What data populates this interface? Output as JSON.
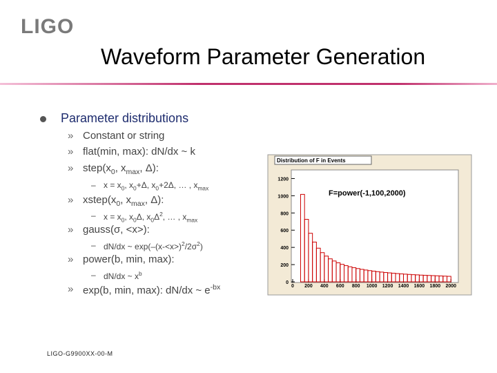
{
  "logo": "LIGO",
  "header": {
    "title": "Waveform Parameter Generation"
  },
  "bullet": "Parameter distributions",
  "items": [
    {
      "level": 2,
      "parts": [
        {
          "text": "Constant or string"
        }
      ]
    },
    {
      "level": 2,
      "parts": [
        {
          "text": "flat(min, max): dN/dx ~ k"
        }
      ]
    },
    {
      "level": 2,
      "parts": [
        {
          "text": "step(x"
        },
        {
          "text": "0",
          "style": "sub"
        },
        {
          "text": ", x"
        },
        {
          "text": "max",
          "style": "sub"
        },
        {
          "text": ", Δ):"
        }
      ]
    },
    {
      "level": 3,
      "parts": [
        {
          "text": "x = x"
        },
        {
          "text": "0",
          "style": "sub"
        },
        {
          "text": ", x"
        },
        {
          "text": "0",
          "style": "sub"
        },
        {
          "text": "+Δ, x"
        },
        {
          "text": "0",
          "style": "sub"
        },
        {
          "text": "+2Δ, … , x"
        },
        {
          "text": "max",
          "style": "sub"
        }
      ]
    },
    {
      "level": 2,
      "parts": [
        {
          "text": "xstep(x"
        },
        {
          "text": "0",
          "style": "sub"
        },
        {
          "text": ", x"
        },
        {
          "text": "max",
          "style": "sub"
        },
        {
          "text": ", Δ):"
        }
      ]
    },
    {
      "level": 3,
      "parts": [
        {
          "text": "x = x"
        },
        {
          "text": "0",
          "style": "sub"
        },
        {
          "text": ", x"
        },
        {
          "text": "0",
          "style": "sub"
        },
        {
          "text": "Δ, x"
        },
        {
          "text": "0",
          "style": "sub"
        },
        {
          "text": "Δ"
        },
        {
          "text": "2",
          "style": "sup"
        },
        {
          "text": ", … , x"
        },
        {
          "text": "max",
          "style": "sub"
        }
      ]
    },
    {
      "level": 2,
      "parts": [
        {
          "text": "gauss(σ, <x>):"
        }
      ]
    },
    {
      "level": 3,
      "parts": [
        {
          "text": "dN/dx ~ exp(–(x-<x>)"
        },
        {
          "text": "2",
          "style": "sup"
        },
        {
          "text": "/2σ"
        },
        {
          "text": "2",
          "style": "sup"
        },
        {
          "text": ")"
        }
      ]
    },
    {
      "level": 2,
      "parts": [
        {
          "text": "power(b, min, max):"
        }
      ]
    },
    {
      "level": 3,
      "parts": [
        {
          "text": "dN/dx ~ x"
        },
        {
          "text": "b",
          "style": "sup"
        }
      ]
    },
    {
      "level": 2,
      "parts": [
        {
          "text": "exp(b, min, max): dN/dx ~ e"
        },
        {
          "text": "-bx",
          "style": "sup"
        }
      ]
    }
  ],
  "footer": "LIGO-G9900XX-00-M",
  "chart_data": {
    "type": "histogram",
    "title": "Distribution of F in Events",
    "annotation": "F=power(-1,100,2000)",
    "color": "#cc0000",
    "bins": [
      100,
      150,
      200,
      250,
      300,
      350,
      400,
      450,
      500,
      550,
      600,
      650,
      700,
      750,
      800,
      850,
      900,
      950,
      1000,
      1050,
      1100,
      1150,
      1200,
      1250,
      1300,
      1350,
      1400,
      1450,
      1500,
      1550,
      1600,
      1650,
      1700,
      1750,
      1800,
      1850,
      1900,
      1950,
      2000
    ],
    "values": [
      1016,
      726,
      564,
      462,
      391,
      339,
      299,
      267,
      242,
      221,
      203,
      188,
      175,
      164,
      154,
      145,
      137,
      130,
      124,
      118,
      113,
      108,
      104,
      100,
      96,
      92,
      89,
      86,
      83,
      81,
      78,
      76,
      74,
      72,
      70,
      68,
      66,
      64
    ],
    "xlim": [
      0,
      2050
    ],
    "xticks": [
      0,
      200,
      400,
      600,
      800,
      1000,
      1200,
      1400,
      1600,
      1800,
      2000
    ],
    "ylim": [
      0,
      1300
    ],
    "yticks": [
      0,
      200,
      400,
      600,
      800,
      1000,
      1200
    ]
  }
}
